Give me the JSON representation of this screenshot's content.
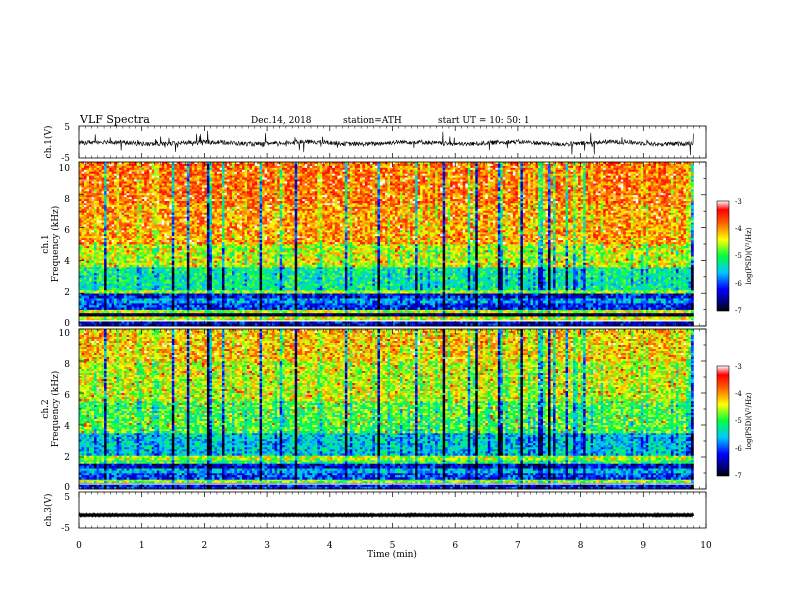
{
  "header": {
    "title": "VLF  Spectra",
    "date": "Dec.14, 2018",
    "station": "station=ATH",
    "start": "start  UT  =   10: 50: 1"
  },
  "chart_data": [
    {
      "type": "line",
      "name": "ch1-waveform",
      "ylabel": "ch.1(V)",
      "ylim": [
        -5,
        5
      ],
      "yticks": [
        "5",
        "-5"
      ],
      "xlim": [
        0,
        10
      ],
      "data_extent_min": 9.8,
      "baseline_v": -0.3,
      "noise_v": 0.7,
      "spike_v": 3.2
    },
    {
      "type": "heatmap",
      "name": "ch1-spectrogram",
      "ylabel_top": "ch.1",
      "ylabel": "Frequency  (kHz)",
      "ylim": [
        0,
        10
      ],
      "yticks": [
        "0",
        "2",
        "4",
        "6",
        "8",
        "10"
      ],
      "xlim": [
        0,
        10
      ],
      "data_extent_min": 9.8,
      "colorbar": {
        "label": "log(PSD)(V²/Hz)",
        "range": [
          -7,
          -3
        ],
        "ticks": [
          "-3",
          "-4",
          "-5",
          "-6",
          "-7"
        ]
      },
      "bands_khz": [
        {
          "f": [
            0.0,
            0.3
          ],
          "level": -6.3
        },
        {
          "f": [
            0.3,
            0.6
          ],
          "level": -4.4
        },
        {
          "f": [
            0.6,
            0.8
          ],
          "level": -6.8
        },
        {
          "f": [
            0.8,
            1.0
          ],
          "level": -4.5
        },
        {
          "f": [
            1.0,
            1.4
          ],
          "level": -6.1
        },
        {
          "f": [
            1.4,
            1.7
          ],
          "level": -5.7
        },
        {
          "f": [
            1.7,
            2.0
          ],
          "level": -6.2
        },
        {
          "f": [
            2.0,
            2.2
          ],
          "level": -4.6
        },
        {
          "f": [
            2.2,
            3.6
          ],
          "level": -5.2
        },
        {
          "f": [
            3.6,
            5.0
          ],
          "level": -4.5
        },
        {
          "f": [
            5.0,
            7.5
          ],
          "level": -4.0
        },
        {
          "f": [
            7.5,
            10.0
          ],
          "level": -3.8
        }
      ]
    },
    {
      "type": "heatmap",
      "name": "ch2-spectrogram",
      "ylabel_top": "ch.2",
      "ylabel": "Frequency  (kHz)",
      "ylim": [
        0,
        10
      ],
      "yticks": [
        "0",
        "2",
        "4",
        "6",
        "8",
        "10"
      ],
      "xlim": [
        0,
        10
      ],
      "data_extent_min": 9.8,
      "colorbar": {
        "label": "log(PSD)(V²/Hz)",
        "range": [
          -7,
          -3
        ],
        "ticks": [
          "-3",
          "-4",
          "-5",
          "-6",
          "-7"
        ]
      },
      "bands_khz": [
        {
          "f": [
            0.0,
            0.4
          ],
          "level": -6.2
        },
        {
          "f": [
            0.4,
            0.6
          ],
          "level": -4.6
        },
        {
          "f": [
            0.6,
            1.0
          ],
          "level": -6.0
        },
        {
          "f": [
            1.0,
            1.3
          ],
          "level": -5.6
        },
        {
          "f": [
            1.3,
            1.6
          ],
          "level": -6.3
        },
        {
          "f": [
            1.6,
            1.8
          ],
          "level": -5.0
        },
        {
          "f": [
            1.8,
            2.1
          ],
          "level": -4.5
        },
        {
          "f": [
            2.1,
            3.5
          ],
          "level": -5.5
        },
        {
          "f": [
            3.5,
            5.5
          ],
          "level": -4.9
        },
        {
          "f": [
            5.5,
            8.0
          ],
          "level": -4.5
        },
        {
          "f": [
            8.0,
            10.0
          ],
          "level": -4.2
        }
      ]
    },
    {
      "type": "line",
      "name": "ch3-waveform",
      "ylabel": "ch.3(V)",
      "ylim": [
        -5,
        5
      ],
      "yticks": [
        "5",
        "-5"
      ],
      "xlim": [
        0,
        10
      ],
      "data_extent_min": 9.8,
      "baseline_v": -1.4,
      "noise_v": 0.25
    }
  ],
  "x_axis": {
    "label": "Time  (min)",
    "ticks": [
      "0",
      "1",
      "2",
      "3",
      "4",
      "5",
      "6",
      "7",
      "8",
      "9",
      "10"
    ]
  }
}
